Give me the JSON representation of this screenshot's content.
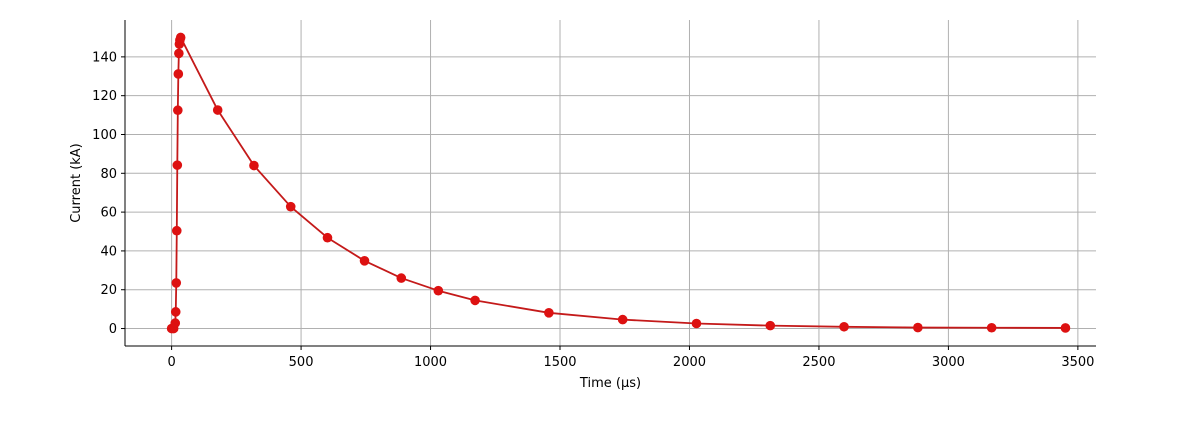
{
  "chart_data": {
    "type": "line",
    "title": "",
    "xlabel": "Time (µs)",
    "ylabel": "Current (kA)",
    "xlim": [
      -180,
      3570
    ],
    "ylim": [
      -9,
      159
    ],
    "xticks": [
      0,
      500,
      1000,
      1500,
      2000,
      2500,
      3000,
      3500
    ],
    "yticks": [
      0,
      20,
      40,
      60,
      80,
      100,
      120,
      140
    ],
    "grid": true,
    "color": "#dd1111",
    "line_color": "#c41a1a",
    "series": [
      {
        "x": [
          0,
          8,
          14,
          16,
          18,
          20,
          22,
          24,
          26,
          28,
          30,
          32,
          35,
          178,
          318,
          460,
          602,
          745,
          887,
          1030,
          1172,
          1457,
          1742,
          2027,
          2312,
          2597,
          2882,
          3167,
          3452
        ],
        "y": [
          0,
          0,
          2.8,
          8.6,
          23.5,
          50.4,
          84.2,
          112.5,
          131.2,
          141.8,
          146.6,
          148.6,
          150,
          112.6,
          84,
          62.8,
          46.8,
          34.9,
          26,
          19.5,
          14.5,
          8.1,
          4.6,
          2.6,
          1.5,
          0.9,
          0.5,
          0.4,
          0.3
        ]
      }
    ]
  }
}
